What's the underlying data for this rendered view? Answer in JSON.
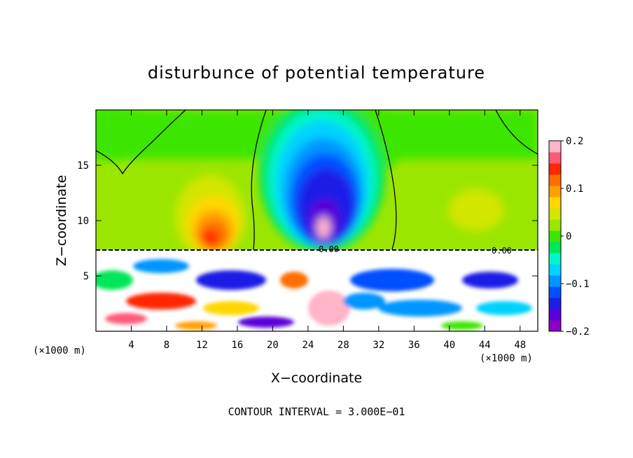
{
  "chart_data": {
    "type": "heatmap",
    "title": "disturbunce of potential temperature",
    "xlabel": "X−coordinate",
    "ylabel": "Z−coordinate",
    "x_unit_left": "(×1000 m)",
    "x_unit_right": "(×1000 m)",
    "footer": "CONTOUR INTERVAL = 3.000E−01",
    "xlim": [
      0,
      50
    ],
    "ylim": [
      0,
      20
    ],
    "x_ticks": [
      4,
      8,
      12,
      16,
      20,
      24,
      28,
      32,
      36,
      40,
      44,
      48
    ],
    "y_ticks": [
      5,
      10,
      15
    ],
    "colorbar": {
      "range": [
        -0.2,
        0.2
      ],
      "ticks": [
        0.2,
        0.1,
        0,
        -0.1,
        -0.2
      ],
      "tick_labels": [
        "0.2",
        "0.1",
        "0",
        "−0.1",
        "−0.2"
      ],
      "colors": [
        "#8a00c8",
        "#5a00d8",
        "#1e1ee6",
        "#0050ff",
        "#0096ff",
        "#00d2ff",
        "#00f5c8",
        "#00e65a",
        "#3ce600",
        "#9be600",
        "#d2e600",
        "#ffd700",
        "#ffa000",
        "#ff6e00",
        "#ff2800",
        "#ff5a78",
        "#ffb4c8"
      ]
    },
    "features": {
      "warm_anomaly": {
        "x": 13.5,
        "z": 10.5,
        "value": 0.15
      },
      "cold_anomaly": {
        "x": 25.5,
        "z": 11.5,
        "value": -0.2
      },
      "boundary_layer_top_z": 7.3
    },
    "contour_labels": [
      "0.00",
      "0.00",
      "0.00",
      "0.00",
      "0.00",
      "0.00"
    ]
  }
}
